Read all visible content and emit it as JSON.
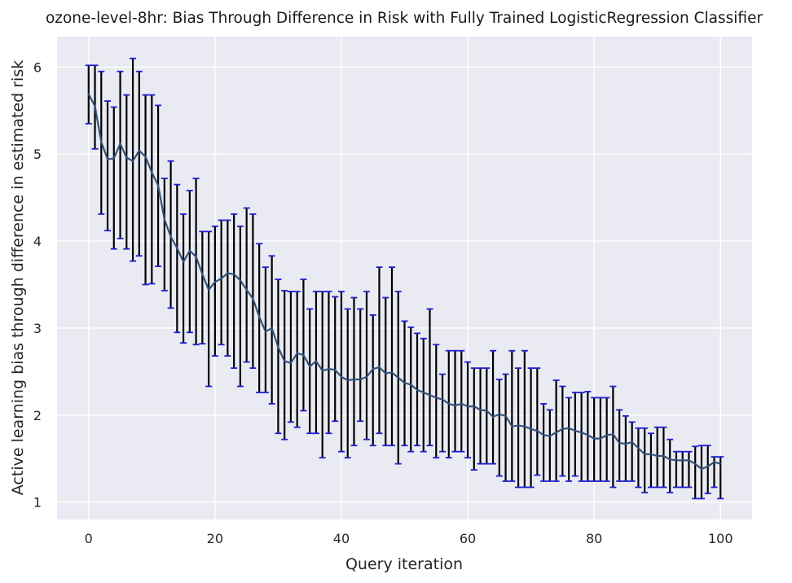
{
  "chart_data": {
    "type": "line",
    "title": "ozone-level-8hr: Bias Through Difference in Risk with Fully Trained LogisticRegression Classifier",
    "xlabel": "Query iteration",
    "ylabel": "Active learning bias through difference in estimated risk",
    "xlim": [
      -5,
      105
    ],
    "ylim": [
      0.8,
      6.35
    ],
    "xticks": [
      0,
      20,
      40,
      60,
      80,
      100
    ],
    "yticks": [
      1,
      2,
      3,
      4,
      5,
      6
    ],
    "grid": true,
    "legend": false,
    "colors": {
      "background": "#eaeaf2",
      "grid": "#ffffff",
      "line": "#34527a",
      "errorbar": "#000000",
      "cap": "#1f1fcf"
    },
    "series": [
      {
        "x": [
          0,
          1,
          2,
          3,
          4,
          5,
          6,
          7,
          8,
          9,
          10,
          11,
          12,
          13,
          14,
          15,
          16,
          17,
          18,
          19,
          20,
          21,
          22,
          23,
          24,
          25,
          26,
          27,
          28,
          29,
          30,
          31,
          32,
          33,
          34,
          35,
          36,
          37,
          38,
          39,
          40,
          41,
          42,
          43,
          44,
          45,
          46,
          47,
          48,
          49,
          50,
          51,
          52,
          53,
          54,
          55,
          56,
          57,
          58,
          59,
          60,
          61,
          62,
          63,
          64,
          65,
          66,
          67,
          68,
          69,
          70,
          71,
          72,
          73,
          74,
          75,
          76,
          77,
          78,
          79,
          80,
          81,
          82,
          83,
          84,
          85,
          86,
          87,
          88,
          89,
          90,
          91,
          92,
          93,
          94,
          95,
          96,
          97,
          98,
          99,
          100
        ],
        "y": [
          5.69,
          5.55,
          5.14,
          4.94,
          4.95,
          5.12,
          4.96,
          4.92,
          5.04,
          4.97,
          4.79,
          4.64,
          4.25,
          4.05,
          3.92,
          3.76,
          3.89,
          3.82,
          3.62,
          3.44,
          3.53,
          3.57,
          3.63,
          3.62,
          3.55,
          3.44,
          3.34,
          3.13,
          2.96,
          3.0,
          2.78,
          2.62,
          2.6,
          2.71,
          2.69,
          2.56,
          2.62,
          2.51,
          2.53,
          2.52,
          2.44,
          2.4,
          2.41,
          2.41,
          2.44,
          2.53,
          2.55,
          2.48,
          2.49,
          2.43,
          2.37,
          2.35,
          2.29,
          2.26,
          2.23,
          2.2,
          2.18,
          2.13,
          2.11,
          2.13,
          2.1,
          2.1,
          2.06,
          2.05,
          1.98,
          2.01,
          1.99,
          1.87,
          1.88,
          1.87,
          1.84,
          1.82,
          1.77,
          1.76,
          1.8,
          1.84,
          1.85,
          1.82,
          1.8,
          1.77,
          1.73,
          1.73,
          1.77,
          1.78,
          1.68,
          1.67,
          1.69,
          1.62,
          1.55,
          1.55,
          1.53,
          1.53,
          1.49,
          1.48,
          1.48,
          1.48,
          1.44,
          1.38,
          1.41,
          1.46,
          1.44
        ],
        "yerr_low": [
          5.35,
          5.06,
          4.31,
          4.12,
          3.91,
          4.03,
          3.91,
          3.77,
          3.83,
          3.5,
          3.51,
          3.71,
          3.43,
          3.23,
          2.95,
          2.83,
          2.95,
          2.81,
          2.82,
          2.33,
          2.68,
          2.81,
          2.68,
          2.54,
          2.33,
          2.61,
          2.54,
          2.26,
          2.26,
          2.13,
          1.79,
          1.72,
          1.92,
          1.86,
          2.05,
          1.79,
          1.79,
          1.51,
          1.79,
          1.93,
          1.58,
          1.51,
          1.65,
          1.93,
          1.72,
          1.65,
          1.79,
          1.65,
          1.65,
          1.44,
          1.65,
          1.58,
          1.65,
          1.58,
          1.65,
          1.51,
          1.58,
          1.51,
          1.58,
          1.58,
          1.51,
          1.37,
          1.44,
          1.44,
          1.44,
          1.3,
          1.24,
          1.24,
          1.17,
          1.17,
          1.17,
          1.31,
          1.24,
          1.24,
          1.24,
          1.3,
          1.24,
          1.3,
          1.24,
          1.24,
          1.24,
          1.24,
          1.24,
          1.17,
          1.24,
          1.24,
          1.24,
          1.17,
          1.11,
          1.17,
          1.17,
          1.17,
          1.11,
          1.17,
          1.17,
          1.17,
          1.04,
          1.04,
          1.1,
          1.17,
          1.04
        ],
        "yerr_high": [
          6.02,
          6.02,
          5.95,
          5.61,
          5.54,
          5.95,
          5.68,
          6.1,
          5.95,
          5.68,
          5.68,
          5.56,
          4.72,
          4.92,
          4.65,
          4.31,
          4.58,
          4.72,
          4.11,
          4.11,
          4.17,
          4.24,
          4.24,
          4.31,
          4.17,
          4.38,
          4.31,
          3.97,
          3.7,
          3.83,
          3.56,
          3.43,
          3.42,
          3.42,
          3.56,
          3.22,
          3.42,
          3.42,
          3.42,
          3.36,
          3.42,
          3.22,
          3.35,
          3.22,
          3.42,
          3.15,
          3.7,
          3.35,
          3.7,
          3.42,
          3.08,
          3.01,
          2.94,
          2.88,
          3.22,
          2.81,
          2.47,
          2.74,
          2.74,
          2.74,
          2.61,
          2.54,
          2.54,
          2.54,
          2.74,
          2.41,
          2.47,
          2.74,
          2.54,
          2.74,
          2.54,
          2.54,
          2.13,
          2.06,
          2.4,
          2.33,
          2.2,
          2.26,
          2.26,
          2.27,
          2.2,
          2.2,
          2.2,
          2.33,
          2.06,
          1.99,
          1.92,
          1.85,
          1.85,
          1.79,
          1.86,
          1.86,
          1.72,
          1.58,
          1.58,
          1.58,
          1.64,
          1.65,
          1.65,
          1.52,
          1.52
        ]
      }
    ]
  }
}
